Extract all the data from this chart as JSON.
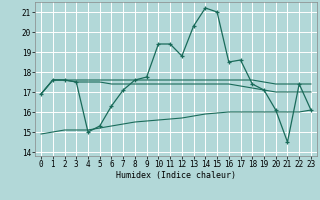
{
  "xlabel": "Humidex (Indice chaleur)",
  "background_color": "#b2d8d8",
  "grid_color": "#ffffff",
  "line_color": "#1a6b5a",
  "xlim": [
    -0.5,
    23.5
  ],
  "ylim": [
    13.8,
    21.5
  ],
  "xticks": [
    0,
    1,
    2,
    3,
    4,
    5,
    6,
    7,
    8,
    9,
    10,
    11,
    12,
    13,
    14,
    15,
    16,
    17,
    18,
    19,
    20,
    21,
    22,
    23
  ],
  "yticks": [
    14,
    15,
    16,
    17,
    18,
    19,
    20,
    21
  ],
  "line_main": {
    "x": [
      0,
      1,
      2,
      3,
      4,
      5,
      6,
      7,
      8,
      9,
      10,
      11,
      12,
      13,
      14,
      15,
      16,
      17,
      18,
      19,
      20,
      21,
      22,
      23
    ],
    "y": [
      16.9,
      17.6,
      17.6,
      17.5,
      15.0,
      15.3,
      16.3,
      17.1,
      17.6,
      17.75,
      19.4,
      19.4,
      18.8,
      20.3,
      21.2,
      21.0,
      18.5,
      18.6,
      17.4,
      17.1,
      16.1,
      14.5,
      17.4,
      16.1
    ]
  },
  "line_upper": {
    "x": [
      0,
      1,
      2,
      3,
      4,
      5,
      6,
      7,
      8,
      9,
      10,
      11,
      12,
      13,
      14,
      15,
      16,
      17,
      18,
      19,
      20,
      21,
      22,
      23
    ],
    "y": [
      16.9,
      17.6,
      17.6,
      17.6,
      17.6,
      17.6,
      17.6,
      17.6,
      17.6,
      17.6,
      17.6,
      17.6,
      17.6,
      17.6,
      17.6,
      17.6,
      17.6,
      17.6,
      17.6,
      17.5,
      17.4,
      17.4,
      17.4,
      17.4
    ]
  },
  "line_mid": {
    "x": [
      0,
      1,
      2,
      3,
      4,
      5,
      6,
      7,
      8,
      9,
      10,
      11,
      12,
      13,
      14,
      15,
      16,
      17,
      18,
      19,
      20,
      21,
      22,
      23
    ],
    "y": [
      16.9,
      17.6,
      17.6,
      17.5,
      17.5,
      17.5,
      17.4,
      17.4,
      17.4,
      17.4,
      17.4,
      17.4,
      17.4,
      17.4,
      17.4,
      17.4,
      17.4,
      17.3,
      17.2,
      17.1,
      17.0,
      17.0,
      17.0,
      17.0
    ]
  },
  "line_lower": {
    "x": [
      0,
      1,
      2,
      3,
      4,
      5,
      6,
      7,
      8,
      9,
      10,
      11,
      12,
      13,
      14,
      15,
      16,
      17,
      18,
      19,
      20,
      21,
      22,
      23
    ],
    "y": [
      14.9,
      15.0,
      15.1,
      15.1,
      15.1,
      15.2,
      15.3,
      15.4,
      15.5,
      15.55,
      15.6,
      15.65,
      15.7,
      15.8,
      15.9,
      15.95,
      16.0,
      16.0,
      16.0,
      16.0,
      16.0,
      16.0,
      16.0,
      16.1
    ]
  }
}
